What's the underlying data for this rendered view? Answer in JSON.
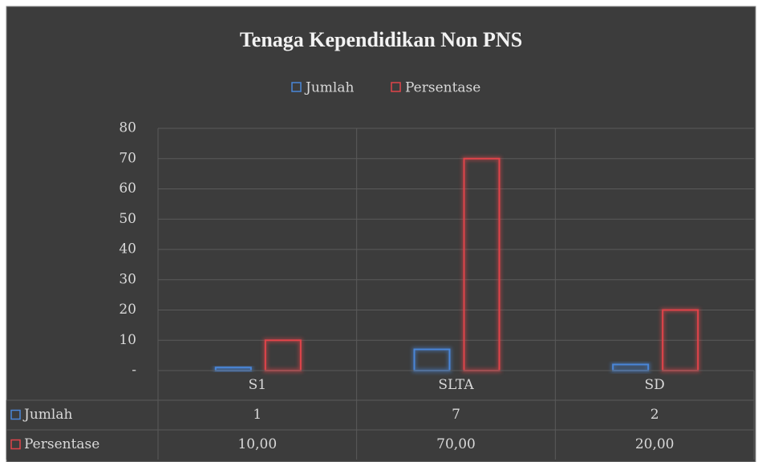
{
  "chart_data": {
    "type": "bar",
    "title": "Tenaga Kependidikan Non PNS",
    "categories": [
      "S1",
      "SLTA",
      "SD"
    ],
    "series": [
      {
        "name": "Jumlah",
        "color": "#4a86d8",
        "values": [
          1,
          7,
          2
        ]
      },
      {
        "name": "Persentase",
        "color": "#e0444a",
        "values": [
          10,
          70,
          20
        ],
        "value_labels": [
          "10,00",
          "70,00",
          "20,00"
        ]
      }
    ],
    "ylim": [
      0,
      80
    ],
    "yticks": [
      {
        "value": 0,
        "label": "-"
      },
      10,
      20,
      30,
      40,
      50,
      60,
      70,
      80
    ],
    "grid": true,
    "legend": "top",
    "data_table": true
  }
}
